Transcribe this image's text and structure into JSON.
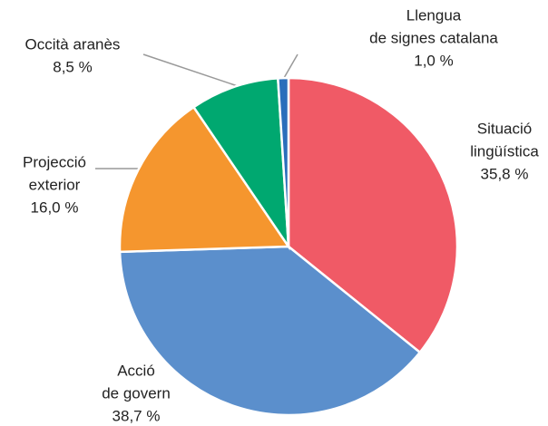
{
  "chart_data": {
    "type": "pie",
    "categories": [
      [
        "Situació",
        "lingüística"
      ],
      [
        "Acció",
        "de govern"
      ],
      [
        "Projecció",
        "exterior"
      ],
      [
        "Occità aranès"
      ],
      [
        "Llengua",
        "de signes catalana"
      ]
    ],
    "values": [
      35.8,
      38.7,
      16.0,
      8.5,
      1.0
    ],
    "value_labels": [
      "35,8 %",
      "38,7 %",
      "16,0 %",
      "8,5 %",
      "1,0 %"
    ],
    "colors": [
      "#f05a66",
      "#5b8fcc",
      "#f5962e",
      "#00a870",
      "#2a6ebb"
    ]
  }
}
